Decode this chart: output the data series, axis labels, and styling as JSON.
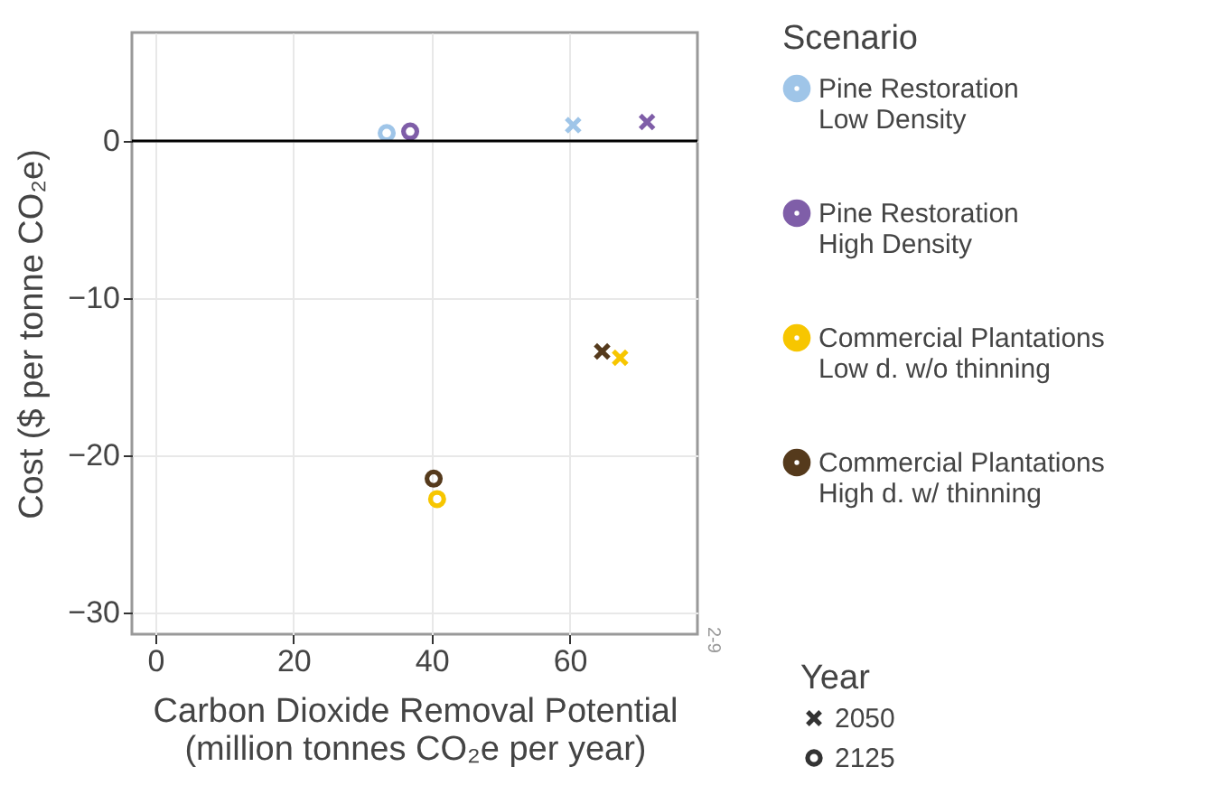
{
  "chart_data": {
    "type": "scatter",
    "xlabel": "Carbon Dioxide Removal Potential\n(million tonnes CO₂e per year)",
    "ylabel": "Cost ($ per tonne CO₂e)",
    "legend_title": [
      "Scenario",
      "Year"
    ],
    "xlim": [
      -3.4,
      78.5
    ],
    "xticks": [
      0,
      20,
      40,
      60
    ],
    "ylim": [
      -31.4,
      6.9
    ],
    "yticks": [
      -30,
      -20,
      -10,
      0
    ],
    "grid": true,
    "legend": "right",
    "ref_lines": [
      {
        "axis": "y",
        "value": 0,
        "color": "#000000"
      }
    ],
    "annotations": [
      "2-9"
    ],
    "series": [
      {
        "name": "Pine Restoration\nLow Density",
        "color": "#9fc5e8",
        "marker": [
          "cross",
          "circle"
        ],
        "x": [
          60.5,
          33.5
        ],
        "values": [
          1.0,
          0.5
        ]
      },
      {
        "name": "Pine Restoration\nHigh Density",
        "color": "#7f5ea8",
        "marker": [
          "cross",
          "circle"
        ],
        "x": [
          71.2,
          36.9
        ],
        "values": [
          1.2,
          0.6
        ]
      },
      {
        "name": "Commercial Plantations\nLow d. w/o thinning",
        "color": "#f7c600",
        "marker": [
          "cross",
          "circle"
        ],
        "x": [
          67.3,
          40.8
        ],
        "values": [
          -13.8,
          -22.8
        ]
      },
      {
        "name": "Commercial Plantations\nHigh d. w/ thinning",
        "color": "#553a1c",
        "marker": [
          "cross",
          "circle"
        ],
        "x": [
          64.7,
          40.3
        ],
        "values": [
          -13.4,
          -21.5
        ]
      },
      {
        "name": "2050",
        "color": "#333333",
        "marker": "cross"
      },
      {
        "name": "2125",
        "color": "#333333",
        "marker": "circle"
      }
    ]
  }
}
